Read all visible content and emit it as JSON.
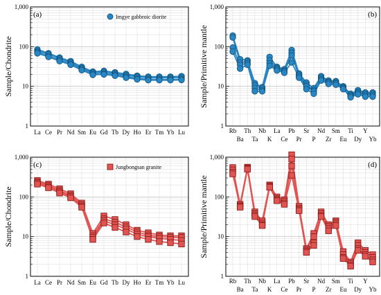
{
  "chart_data": [
    {
      "type": "line",
      "panel": "(a)",
      "ylabel": "Sample/Chondrite",
      "yscale": "log",
      "ylim": [
        1,
        1000
      ],
      "yticks": [
        "1",
        "10",
        "100",
        "1,000"
      ],
      "categories": [
        "La",
        "Ce",
        "Pr",
        "Nd",
        "Sm",
        "Eu",
        "Gd",
        "Tb",
        "Dy",
        "Ho",
        "Er",
        "Tm",
        "Yb",
        "Lu"
      ],
      "legend": "Imgye gabbroic diorite",
      "color": "#2a86c3",
      "marker": "circle",
      "series": [
        {
          "values": [
            85,
            68,
            53,
            43,
            31,
            23.5,
            24.5,
            22.5,
            20.5,
            18.5,
            17.5,
            17.5,
            17.5,
            18
          ]
        },
        {
          "values": [
            78,
            64,
            50,
            40,
            29,
            22,
            23,
            21,
            19,
            17.5,
            16.5,
            16.5,
            16.5,
            16.5
          ]
        },
        {
          "values": [
            72,
            58,
            46,
            37,
            27,
            20.5,
            21,
            19.5,
            17.5,
            16,
            15,
            15,
            15,
            15
          ]
        },
        {
          "values": [
            68,
            55,
            43,
            35,
            25.5,
            19.5,
            20,
            18.5,
            16.5,
            15,
            14.3,
            14.3,
            14.3,
            14.5
          ]
        }
      ]
    },
    {
      "type": "line",
      "panel": "(b)",
      "ylabel": "Sample/Primitive mantle",
      "yscale": "log",
      "ylim": [
        1,
        1000
      ],
      "yticks": [
        "1",
        "10",
        "100",
        "1,000"
      ],
      "categories": [
        "Rb",
        "Ba",
        "Th",
        "Ta",
        "Nb",
        "K",
        "La",
        "Ce",
        "Pb",
        "Pr",
        "Sr",
        "P",
        "Nd",
        "Zr",
        "Sm",
        "Eu",
        "Ti",
        "Dy",
        "Y",
        "Yb"
      ],
      "color": "#2a86c3",
      "marker": "circle",
      "series": [
        {
          "values": [
            190,
            48,
            45,
            12,
            9.5,
            55,
            31,
            27,
            82,
            21,
            12.5,
            9,
            18,
            14,
            13.5,
            10,
            6.5,
            8,
            7,
            7
          ]
        },
        {
          "values": [
            170,
            40,
            42,
            10.5,
            8.8,
            45,
            29,
            25,
            70,
            19.5,
            11,
            8,
            16.5,
            13,
            12.5,
            9.5,
            6,
            7.3,
            6.5,
            6.5
          ]
        },
        {
          "values": [
            95,
            35,
            38,
            9,
            8,
            38,
            27,
            24,
            60,
            18,
            10,
            7.5,
            15,
            12.5,
            12,
            9,
            5.7,
            6.8,
            6,
            6
          ]
        },
        {
          "values": [
            75,
            28,
            35,
            7.5,
            7.5,
            33,
            25,
            22,
            40,
            16.5,
            8.5,
            6.5,
            14,
            11.5,
            11,
            8.5,
            5.3,
            6.3,
            5.5,
            5.5
          ]
        }
      ]
    },
    {
      "type": "line",
      "panel": "(c)",
      "ylabel": "Sample/Chondrite",
      "yscale": "log",
      "ylim": [
        1,
        1000
      ],
      "yticks": [
        "1",
        "10",
        "100",
        "1,000"
      ],
      "categories": [
        "La",
        "Ce",
        "Pr",
        "Nd",
        "Sm",
        "Eu",
        "Gd",
        "Tb",
        "Dy",
        "Ho",
        "Er",
        "Tm",
        "Yb",
        "Lu"
      ],
      "legend": "Jungbongsan granite",
      "color": "#e05552",
      "marker": "square",
      "series": [
        {
          "values": [
            260,
            210,
            160,
            120,
            70,
            12,
            33,
            27,
            20,
            14.5,
            12.5,
            11,
            10.5,
            10.5
          ]
        },
        {
          "values": [
            240,
            195,
            145,
            110,
            63,
            10.5,
            28,
            23,
            17.5,
            13,
            11,
            10,
            9.5,
            9.5
          ]
        },
        {
          "values": [
            225,
            180,
            135,
            102,
            58,
            9.5,
            25,
            20,
            15.5,
            11.5,
            10,
            9,
            8.5,
            8
          ]
        },
        {
          "values": [
            210,
            170,
            125,
            95,
            55,
            8.5,
            22,
            17,
            13,
            10,
            8.5,
            7.5,
            7,
            6.5
          ]
        }
      ]
    },
    {
      "type": "line",
      "panel": "(d)",
      "ylabel": "Sample/Primitive mantle",
      "yscale": "log",
      "ylim": [
        1,
        1000
      ],
      "yticks": [
        "1",
        "10",
        "100",
        "1,000"
      ],
      "categories": [
        "Rb",
        "Ba",
        "Th",
        "Ta",
        "Nb",
        "K",
        "La",
        "Ce",
        "Pb",
        "Pr",
        "Sr",
        "P",
        "Nd",
        "Zr",
        "Sm",
        "Eu",
        "Ti",
        "Dy",
        "Y",
        "Yb"
      ],
      "color": "#e05552",
      "marker": "square",
      "series": [
        {
          "values": [
            550,
            65,
            560,
            42,
            25,
            200,
            100,
            85,
            1150,
            58,
            5,
            12,
            42,
            20,
            25,
            4.2,
            2.3,
            7,
            4.5,
            3.5
          ]
        },
        {
          "values": [
            480,
            60,
            530,
            38,
            22,
            190,
            90,
            78,
            900,
            52,
            4.6,
            10,
            38,
            18,
            23,
            3.5,
            2.1,
            6,
            4,
            3
          ]
        },
        {
          "values": [
            420,
            58,
            510,
            35,
            20,
            180,
            85,
            70,
            600,
            48,
            4.3,
            7,
            34,
            16,
            21,
            3,
            1.9,
            5,
            3.5,
            2.6
          ]
        },
        {
          "values": [
            380,
            55,
            500,
            32,
            19,
            175,
            80,
            65,
            350,
            45,
            4,
            6,
            32,
            14,
            19,
            2.8,
            1.8,
            4.5,
            3.2,
            2.3
          ]
        }
      ]
    }
  ]
}
